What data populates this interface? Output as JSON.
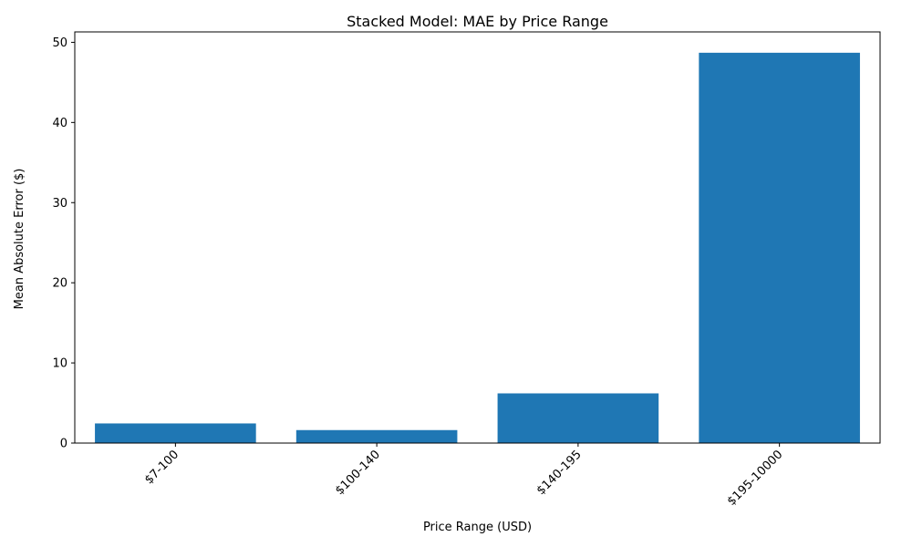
{
  "chart_data": {
    "type": "bar",
    "title": "Stacked Model: MAE by Price Range",
    "xlabel": "Price Range (USD)",
    "ylabel": "Mean Absolute Error ($)",
    "categories": [
      "$7-100",
      "$100-140",
      "$140-195",
      "$195-10000"
    ],
    "values": [
      2.45,
      1.62,
      6.2,
      48.7
    ],
    "ylim": [
      0,
      51.3
    ],
    "yticks": [
      0,
      10,
      20,
      30,
      40,
      50
    ],
    "grid": false,
    "legend": "none",
    "x_tick_rotation_deg": 45,
    "colors": {
      "bar": "#1f77b4",
      "axes": "#000000",
      "background": "#ffffff"
    }
  }
}
